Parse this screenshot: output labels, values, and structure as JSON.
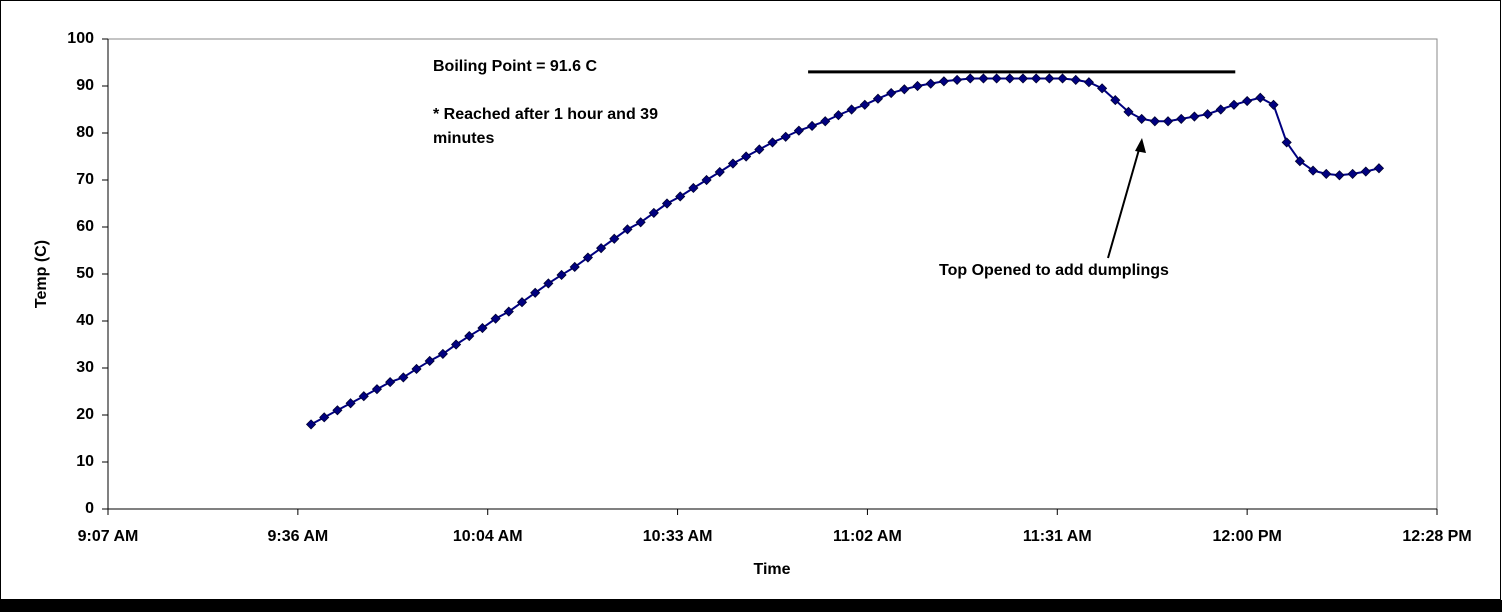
{
  "chart_data": {
    "type": "line",
    "x_label": "Time",
    "y_label": "Temp (C)",
    "xlim": [
      547.2,
      748.8
    ],
    "xticks": [
      {
        "value": 547.2,
        "label": "9:07 AM"
      },
      {
        "value": 576,
        "label": "9:36 AM"
      },
      {
        "value": 604.8,
        "label": "10:04 AM"
      },
      {
        "value": 633.6,
        "label": "10:33 AM"
      },
      {
        "value": 662.4,
        "label": "11:02 AM"
      },
      {
        "value": 691.2,
        "label": "11:31 AM"
      },
      {
        "value": 720,
        "label": "12:00 PM"
      },
      {
        "value": 748.8,
        "label": "12:28 PM"
      }
    ],
    "ylim": [
      0,
      100
    ],
    "yticks": [
      0,
      10,
      20,
      30,
      40,
      50,
      60,
      70,
      80,
      90,
      100
    ],
    "grid": false,
    "series": [
      {
        "color": "#000080",
        "x": [
          578,
          580,
          582,
          584,
          586,
          588,
          590,
          592,
          594,
          596,
          598,
          600,
          602,
          604,
          606,
          608,
          610,
          612,
          614,
          616,
          618,
          620,
          622,
          624,
          626,
          628,
          630,
          632,
          634,
          636,
          638,
          640,
          642,
          644,
          646,
          648,
          650,
          652,
          654,
          656,
          658,
          660,
          662,
          664,
          666,
          668,
          670,
          672,
          674,
          676,
          678,
          680,
          682,
          684,
          686,
          688,
          690,
          692,
          694,
          696,
          698,
          700,
          702,
          704,
          706,
          708,
          710,
          712,
          714,
          716,
          718,
          720,
          722,
          724,
          726,
          728,
          730,
          732,
          734,
          736,
          738,
          740
        ],
        "values": [
          18,
          19.5,
          21,
          22.5,
          24,
          25.5,
          27,
          28,
          29.8,
          31.5,
          33,
          35,
          36.8,
          38.5,
          40.5,
          42,
          44,
          46,
          48,
          49.8,
          51.5,
          53.5,
          55.5,
          57.5,
          59.5,
          61,
          63,
          65,
          66.5,
          68.3,
          70,
          71.7,
          73.5,
          75,
          76.5,
          78,
          79.2,
          80.5,
          81.5,
          82.5,
          83.8,
          85,
          86,
          87.3,
          88.5,
          89.3,
          90,
          90.5,
          91,
          91.3,
          91.6,
          91.6,
          91.6,
          91.6,
          91.6,
          91.6,
          91.6,
          91.6,
          91.3,
          90.8,
          89.5,
          87,
          84.5,
          83,
          82.5,
          82.5,
          83,
          83.5,
          84,
          85,
          86,
          86.8,
          87.5,
          86,
          78,
          74,
          72,
          71.3,
          71,
          71.3,
          71.8,
          72.5
        ]
      }
    ],
    "reference_line": {
      "x": [
        653.4,
        718.2
      ],
      "y": 93,
      "color": "#000000"
    },
    "annotations": [
      "Boiling Point = 91.6 C",
      "* Reached after 1 hour and 39 minutes",
      "Top Opened to add dumplings"
    ]
  }
}
